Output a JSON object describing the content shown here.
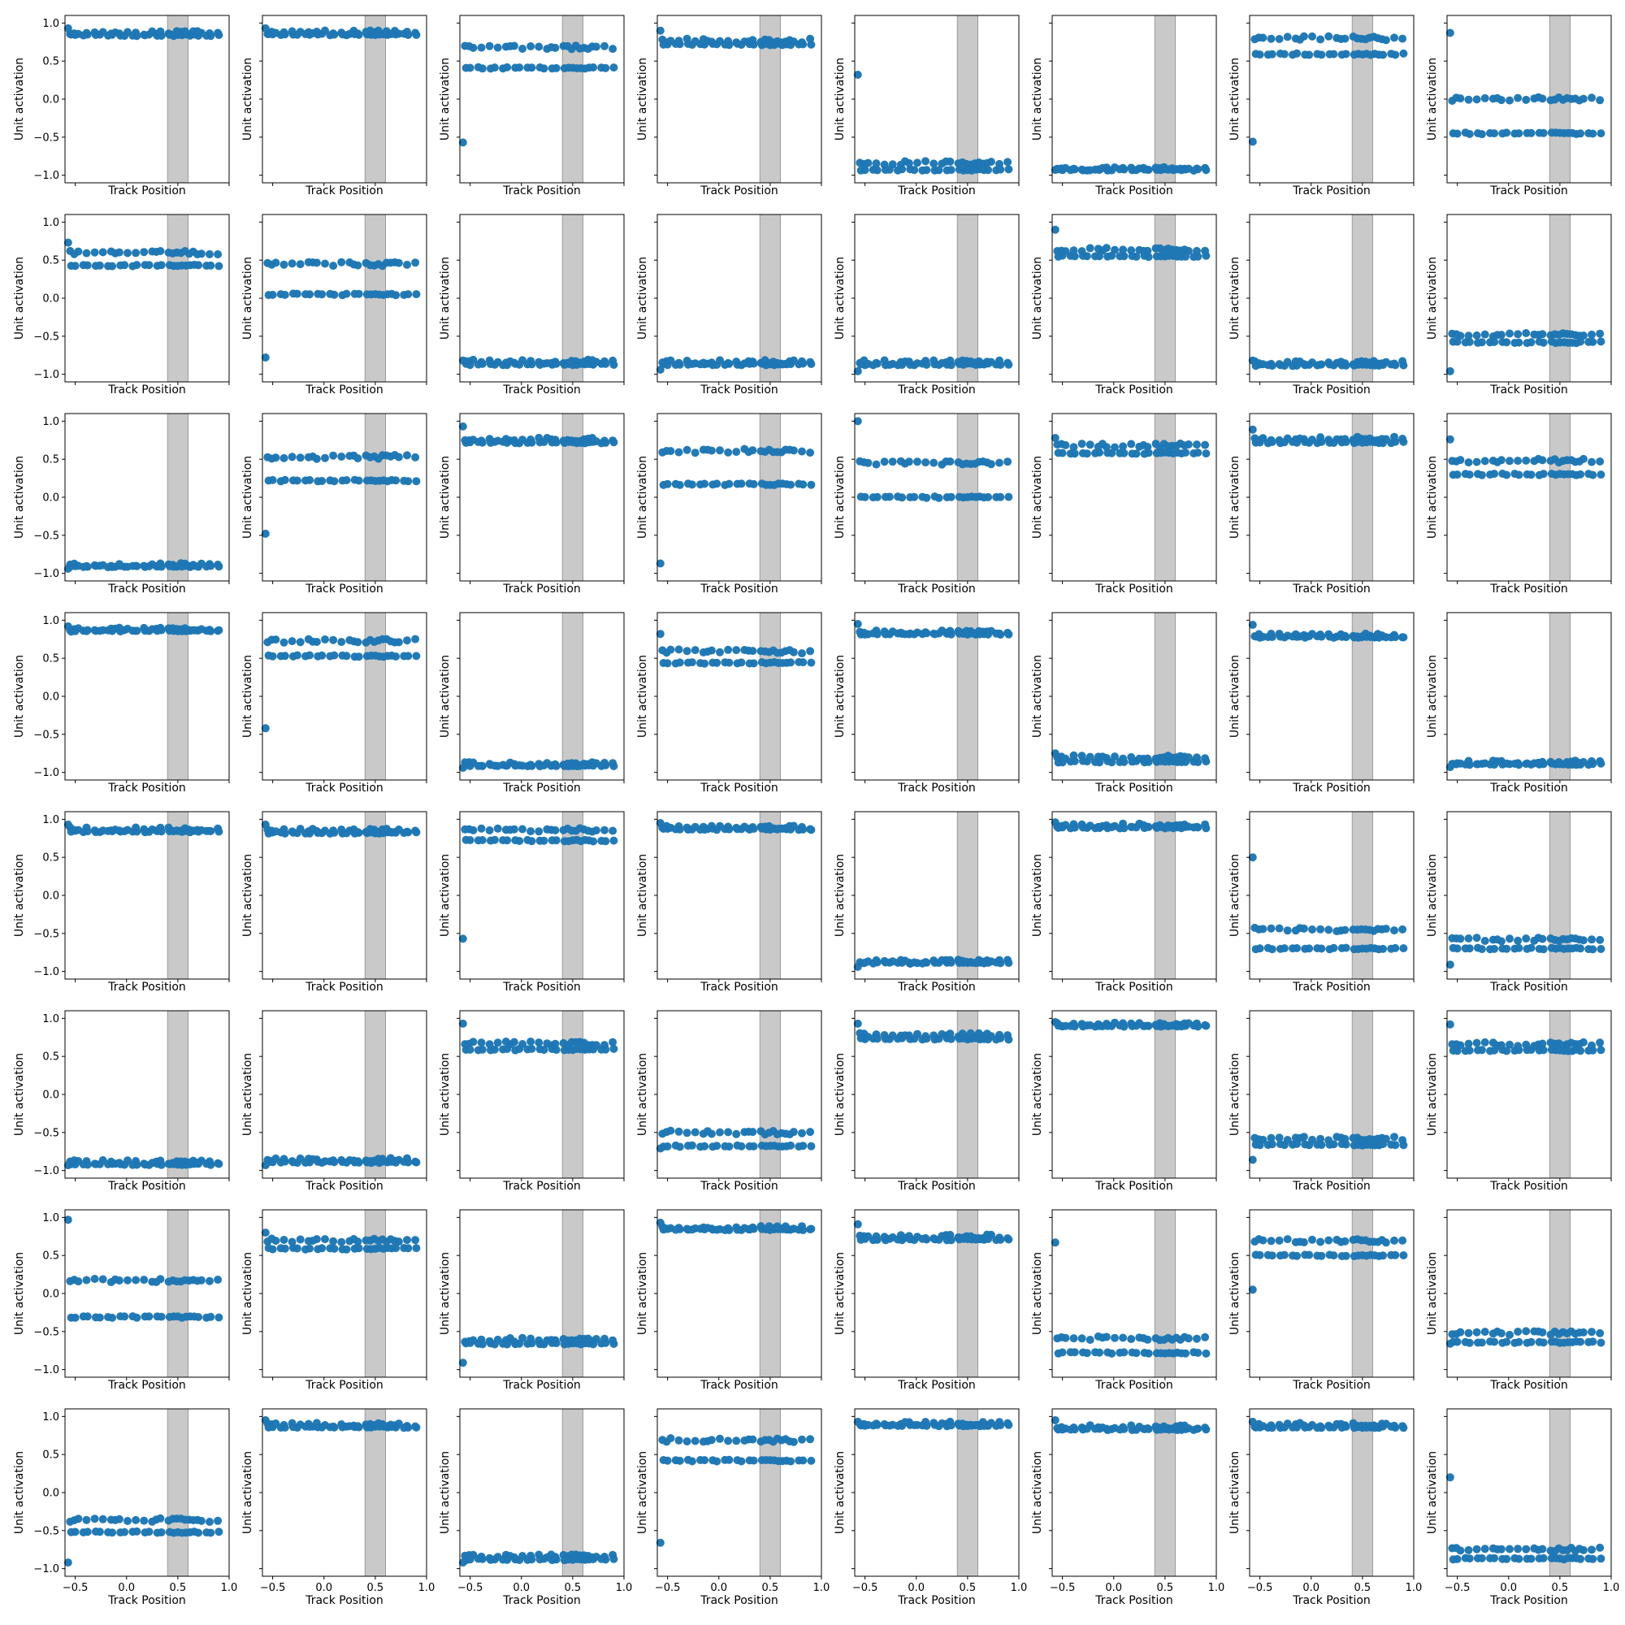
{
  "figure": {
    "background": "#ffffff",
    "rows": 8,
    "cols": 8
  },
  "style": {
    "point_color": "#1f77b4",
    "band_color": "#c9c9c9",
    "axis_color": "#000000"
  },
  "axes_common": {
    "xlabel": "Track Position",
    "ylabel": "Unit activation",
    "xlim": [
      -0.6,
      1.0
    ],
    "ylim": [
      -1.1,
      1.1
    ],
    "xticks": [
      -0.5,
      0.0,
      0.5,
      1.0
    ],
    "xtick_labels": [
      "−0.5",
      "0.0",
      "0.5",
      "1.0"
    ],
    "yticks": [
      1.0,
      0.5,
      0.0,
      -0.5,
      -1.0
    ],
    "ytick_labels": [
      "1.0",
      "0.5",
      "0.0",
      "−0.5",
      "−1.0"
    ],
    "shaded_band": [
      0.4,
      0.6
    ],
    "x_positions": [
      -0.55,
      -0.51,
      -0.47,
      -0.43,
      -0.39,
      -0.35,
      -0.31,
      -0.27,
      -0.23,
      -0.19,
      -0.15,
      -0.11,
      -0.07,
      -0.03,
      0.01,
      0.05,
      0.09,
      0.13,
      0.17,
      0.21,
      0.25,
      0.29,
      0.33,
      0.37,
      0.41,
      0.45,
      0.49,
      0.53,
      0.57,
      0.61,
      0.65,
      0.69,
      0.73,
      0.77,
      0.81,
      0.85,
      0.89
    ]
  },
  "chart_data": {
    "type": "scatter",
    "grid": false,
    "panels": [
      {
        "start": 0.93,
        "u": 0.87,
        "l": 0.84
      },
      {
        "start": 0.93,
        "u": 0.88,
        "l": 0.85
      },
      {
        "start": -0.57,
        "u": 0.68,
        "l": 0.41
      },
      {
        "start": 0.9,
        "u": 0.77,
        "l": 0.72
      },
      {
        "start": 0.32,
        "u": -0.84,
        "l": -0.93
      },
      {
        "start": -0.93,
        "u": -0.91,
        "l": -0.93
      },
      {
        "start": -0.56,
        "u": 0.8,
        "l": 0.59
      },
      {
        "start": 0.87,
        "u": 0.0,
        "l": -0.45
      },
      {
        "start": 0.73,
        "u": 0.6,
        "l": 0.43
      },
      {
        "start": -0.78,
        "u": 0.45,
        "l": 0.05
      },
      {
        "start": -0.82,
        "u": -0.83,
        "l": -0.87
      },
      {
        "start": -0.94,
        "u": -0.84,
        "l": -0.87
      },
      {
        "start": -0.96,
        "u": -0.84,
        "l": -0.87
      },
      {
        "start": 0.9,
        "u": 0.64,
        "l": 0.55
      },
      {
        "start": -0.82,
        "u": -0.85,
        "l": -0.88
      },
      {
        "start": -0.96,
        "u": -0.48,
        "l": -0.58
      },
      {
        "start": -0.94,
        "u": -0.89,
        "l": -0.91
      },
      {
        "start": -0.48,
        "u": 0.53,
        "l": 0.22
      },
      {
        "start": 0.93,
        "u": 0.76,
        "l": 0.72
      },
      {
        "start": -0.87,
        "u": 0.61,
        "l": 0.17
      },
      {
        "start": 1.0,
        "u": 0.45,
        "l": 0.0
      },
      {
        "start": 0.78,
        "u": 0.68,
        "l": 0.58
      },
      {
        "start": 0.89,
        "u": 0.77,
        "l": 0.72
      },
      {
        "start": 0.76,
        "u": 0.48,
        "l": 0.3
      },
      {
        "start": 0.92,
        "u": 0.88,
        "l": 0.86
      },
      {
        "start": -0.42,
        "u": 0.73,
        "l": 0.53
      },
      {
        "start": -0.94,
        "u": -0.89,
        "l": -0.91
      },
      {
        "start": 0.82,
        "u": 0.59,
        "l": 0.44
      },
      {
        "start": 0.95,
        "u": 0.84,
        "l": 0.82
      },
      {
        "start": -0.75,
        "u": -0.8,
        "l": -0.86
      },
      {
        "start": 0.94,
        "u": 0.8,
        "l": 0.78
      },
      {
        "start": -0.93,
        "u": -0.87,
        "l": -0.89
      },
      {
        "start": 0.93,
        "u": 0.87,
        "l": 0.84
      },
      {
        "start": 0.93,
        "u": 0.85,
        "l": 0.82
      },
      {
        "start": -0.57,
        "u": 0.86,
        "l": 0.72
      },
      {
        "start": 0.95,
        "u": 0.89,
        "l": 0.87
      },
      {
        "start": -0.94,
        "u": -0.87,
        "l": -0.89
      },
      {
        "start": 0.96,
        "u": 0.92,
        "l": 0.89
      },
      {
        "start": 0.5,
        "u": -0.45,
        "l": -0.7
      },
      {
        "start": -0.91,
        "u": -0.58,
        "l": -0.7
      },
      {
        "start": -0.93,
        "u": -0.89,
        "l": -0.92
      },
      {
        "start": -0.93,
        "u": -0.86,
        "l": -0.89
      },
      {
        "start": 0.93,
        "u": 0.67,
        "l": 0.59
      },
      {
        "start": -0.71,
        "u": -0.5,
        "l": -0.68
      },
      {
        "start": 0.93,
        "u": 0.78,
        "l": 0.73
      },
      {
        "start": 0.95,
        "u": 0.92,
        "l": 0.9
      },
      {
        "start": -0.86,
        "u": -0.58,
        "l": -0.66
      },
      {
        "start": 0.92,
        "u": 0.66,
        "l": 0.58
      },
      {
        "start": 0.97,
        "u": 0.17,
        "l": -0.31
      },
      {
        "start": 0.8,
        "u": 0.7,
        "l": 0.59
      },
      {
        "start": -0.91,
        "u": -0.61,
        "l": -0.66
      },
      {
        "start": 0.93,
        "u": 0.86,
        "l": 0.84
      },
      {
        "start": 0.91,
        "u": 0.75,
        "l": 0.71
      },
      {
        "start": 0.67,
        "u": -0.59,
        "l": -0.78
      },
      {
        "start": 0.05,
        "u": 0.69,
        "l": 0.5
      },
      {
        "start": -0.66,
        "u": -0.52,
        "l": -0.64
      },
      {
        "start": -0.92,
        "u": -0.36,
        "l": -0.52
      },
      {
        "start": 0.95,
        "u": 0.89,
        "l": 0.86
      },
      {
        "start": -0.92,
        "u": -0.84,
        "l": -0.88
      },
      {
        "start": -0.66,
        "u": 0.69,
        "l": 0.42
      },
      {
        "start": 0.93,
        "u": 0.91,
        "l": 0.88
      },
      {
        "start": 0.95,
        "u": 0.86,
        "l": 0.83
      },
      {
        "start": 0.93,
        "u": 0.89,
        "l": 0.86
      },
      {
        "start": 0.2,
        "u": -0.75,
        "l": -0.87
      }
    ]
  }
}
